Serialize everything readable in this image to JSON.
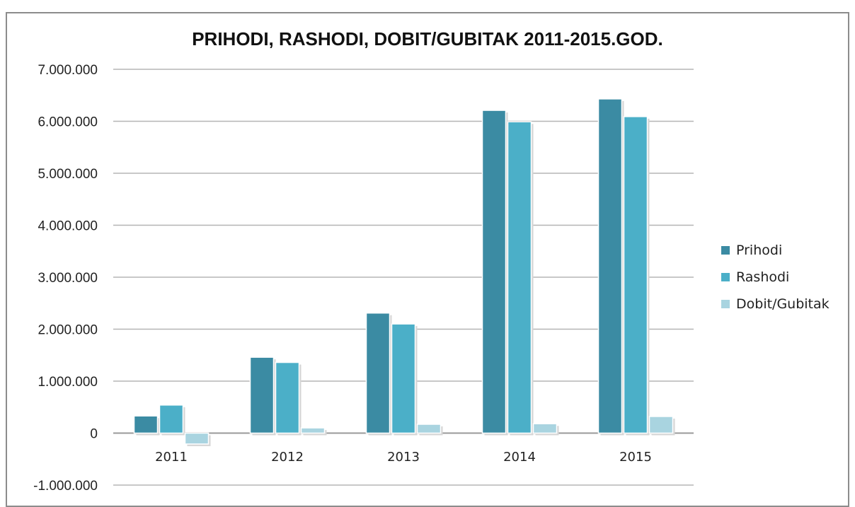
{
  "chart_data": {
    "type": "bar",
    "title": "PRIHODI, RASHODI, DOBIT/GUBITAK 2011-2015.GOD.",
    "categories": [
      "2011",
      "2012",
      "2013",
      "2014",
      "2015"
    ],
    "series": [
      {
        "name": "Prihodi",
        "values": [
          330000,
          1460000,
          2310000,
          6210000,
          6430000
        ],
        "color": "#3b8ba3"
      },
      {
        "name": "Rashodi",
        "values": [
          540000,
          1360000,
          2100000,
          5990000,
          6090000
        ],
        "color": "#4bafc8"
      },
      {
        "name": "Dobit/Gubitak",
        "values": [
          -210000,
          100000,
          170000,
          180000,
          320000
        ],
        "color": "#a9d4e0"
      }
    ],
    "ylim": [
      -1000000,
      7000000
    ],
    "yticks": [
      "7.000.000",
      "6.000.000",
      "5.000.000",
      "4.000.000",
      "3.000.000",
      "2.000.000",
      "1.000.000",
      "0",
      "-1.000.000"
    ],
    "ytick_values": [
      7000000,
      6000000,
      5000000,
      4000000,
      3000000,
      2000000,
      1000000,
      0,
      -1000000
    ],
    "grid": true,
    "legend_position": "right"
  }
}
